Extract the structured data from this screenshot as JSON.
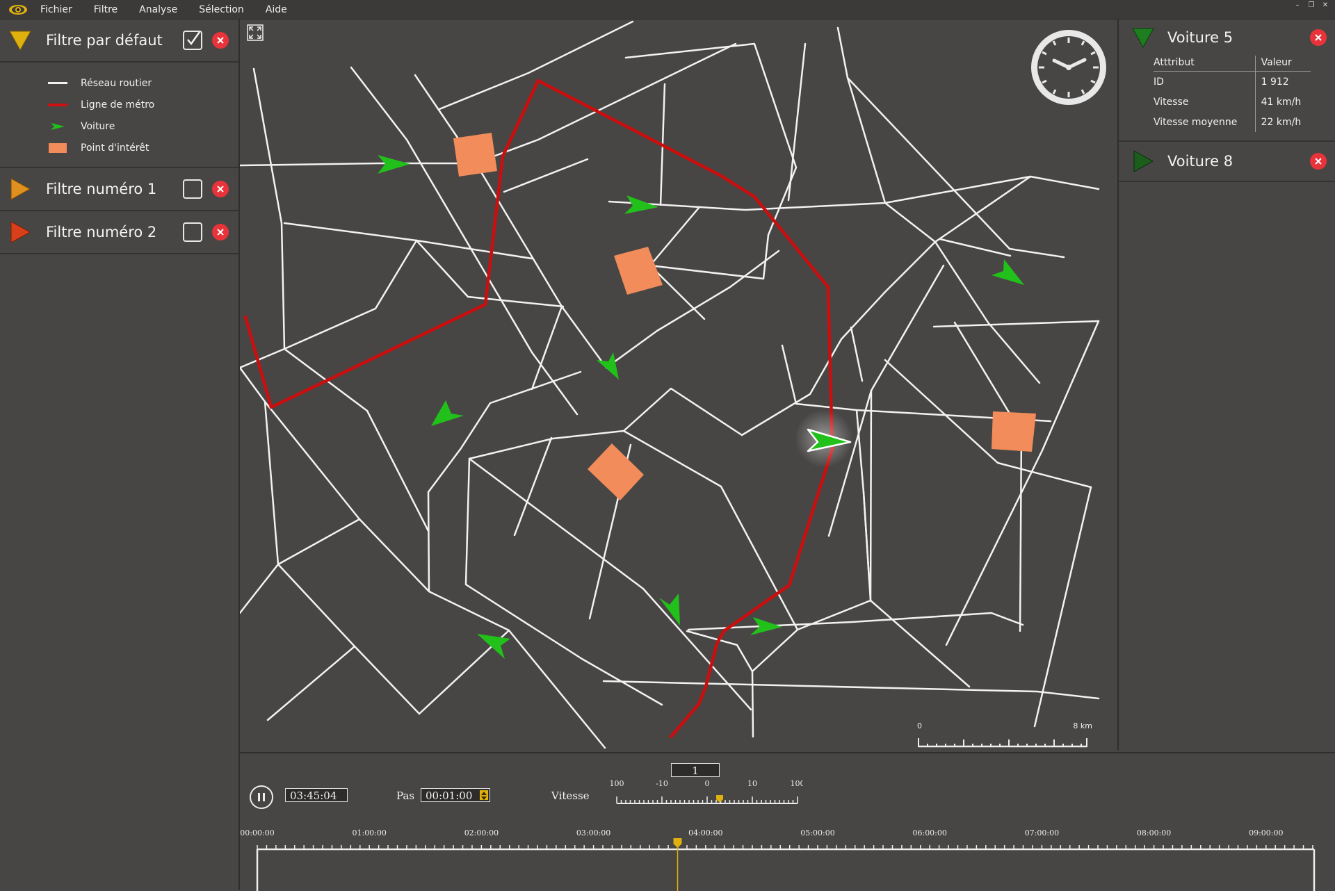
{
  "menubar": {
    "items": [
      "Fichier",
      "Filtre",
      "Analyse",
      "Sélection",
      "Aide"
    ]
  },
  "filters": [
    {
      "title": "Filtre par défaut",
      "color": "#e0b10e",
      "checked": true,
      "expanded": true
    },
    {
      "title": "Filtre numéro 1",
      "color": "#e0901e",
      "checked": false,
      "expanded": false
    },
    {
      "title": "Filtre numéro 2",
      "color": "#d9401a",
      "checked": false,
      "expanded": false
    }
  ],
  "legend": {
    "items": [
      "Réseau routier",
      "Ligne de métro",
      "Voiture",
      "Point d'intérêt"
    ],
    "colors": {
      "road": "#f2f2f2",
      "metro": "#d01010",
      "car": "#22c01a",
      "poi": "#f28c5a"
    }
  },
  "map": {
    "scale": {
      "min_label": "0",
      "max_label": "8 km"
    }
  },
  "cars": [
    {
      "title": "Voiture 5",
      "color": "#1e7d1e",
      "expanded": true,
      "table": {
        "headers": [
          "Atttribut",
          "Valeur"
        ],
        "rows": [
          {
            "attr": "ID",
            "value": "1 912"
          },
          {
            "attr": "Vitesse",
            "value": "41 km/h"
          },
          {
            "attr": "Vitesse moyenne",
            "value": "22 km/h"
          }
        ]
      }
    },
    {
      "title": "Voiture 8",
      "color": "#1b5e1b",
      "expanded": false
    }
  ],
  "playback": {
    "current_time": "03:45:04",
    "step_label": "Pas",
    "step_value": "00:01:00",
    "speed_label": "Vitesse",
    "speed_value": "1",
    "speed_ticks": [
      "100",
      "-10",
      "0",
      "10",
      "100"
    ],
    "timeline_labels": [
      "00:00:00",
      "01:00:00",
      "02:00:00",
      "03:00:00",
      "04:00:00",
      "05:00:00",
      "06:00:00",
      "07:00:00",
      "08:00:00",
      "09:00:00"
    ],
    "timeline_position_hours": 3.75,
    "accent_color": "#e0b10e"
  }
}
